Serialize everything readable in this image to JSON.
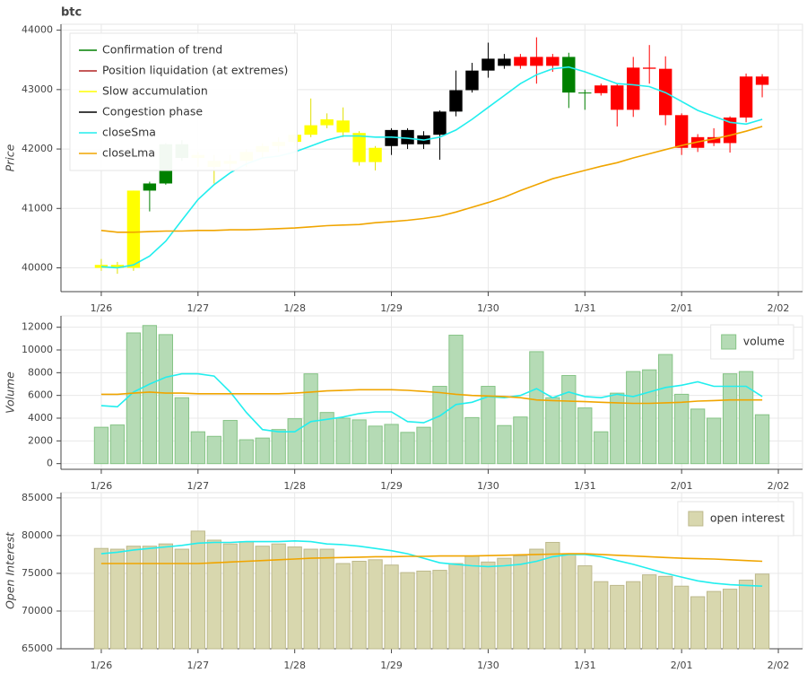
{
  "chart_data": [
    {
      "type": "candlestick",
      "title": "btc",
      "ylabel": "Price",
      "xlim": [
        -10,
        174
      ],
      "xticks": [
        {
          "value": 0,
          "label": "1/26"
        },
        {
          "value": 24,
          "label": "1/27"
        },
        {
          "value": 48,
          "label": "1/28"
        },
        {
          "value": 72,
          "label": "1/29"
        },
        {
          "value": 96,
          "label": "1/30"
        },
        {
          "value": 120,
          "label": "1/31"
        },
        {
          "value": 144,
          "label": "2/01"
        },
        {
          "value": 168,
          "label": "2/02"
        }
      ],
      "ylim": [
        39600,
        44100
      ],
      "yticks": [
        40000,
        41000,
        42000,
        43000,
        44000
      ],
      "grid": true,
      "legend": "top_left",
      "x": [
        0,
        4,
        8,
        12,
        16,
        20,
        24,
        28,
        32,
        36,
        40,
        44,
        48,
        52,
        56,
        60,
        64,
        68,
        72,
        76,
        80,
        84,
        88,
        92,
        96,
        100,
        104,
        108,
        112,
        116,
        120,
        124,
        128,
        132,
        136,
        140,
        144,
        148,
        152,
        156,
        160,
        164
      ],
      "candles": [
        {
          "name": "Confirmation of trend",
          "color": "#008000",
          "legend_color": "#008000",
          "x": [
            12,
            16,
            20,
            116,
            120
          ],
          "open": [
            41300,
            41420,
            42080,
            43550,
            42950
          ],
          "high": [
            41450,
            42100,
            42150,
            43620,
            43000
          ],
          "low": [
            40950,
            41400,
            41800,
            42690,
            42660
          ],
          "close": [
            41420,
            42080,
            41850,
            42950,
            42940
          ]
        },
        {
          "name": "Position liquidation (at extremes)",
          "color": "#ff0000",
          "legend_color": "#b22222",
          "x": [
            104,
            108,
            112,
            124,
            128,
            132,
            136,
            140,
            144,
            148,
            152,
            156,
            160,
            164
          ],
          "open": [
            43400,
            43550,
            43400,
            42940,
            43070,
            42660,
            43370,
            43350,
            42570,
            42020,
            42200,
            42100,
            42530,
            43220
          ],
          "high": [
            43600,
            43880,
            43600,
            43100,
            43100,
            43550,
            43750,
            43560,
            42600,
            42250,
            42350,
            42550,
            43270,
            43260
          ],
          "low": [
            43350,
            43100,
            43300,
            42900,
            42380,
            42540,
            43100,
            42400,
            41900,
            41950,
            42050,
            41940,
            42450,
            42870
          ],
          "close": [
            43550,
            43400,
            43550,
            43070,
            42660,
            43370,
            43350,
            42570,
            42020,
            42200,
            42100,
            42530,
            43220,
            43080
          ]
        },
        {
          "name": "Slow accumulation",
          "color": "#ffff00",
          "legend_color": "#ffff00",
          "x": [
            0,
            4,
            8,
            24,
            28,
            32,
            36,
            40,
            44,
            48,
            52,
            56,
            60,
            64,
            68
          ],
          "open": [
            40050,
            40000,
            40000,
            41850,
            41800,
            41750,
            41800,
            41950,
            42050,
            42120,
            42240,
            42400,
            42480,
            42270,
            41780
          ],
          "high": [
            40150,
            40100,
            41300,
            41950,
            41900,
            41900,
            42000,
            42100,
            42200,
            42250,
            42850,
            42600,
            42700,
            42300,
            42050
          ],
          "low": [
            39950,
            39900,
            39950,
            41700,
            41420,
            41650,
            41700,
            41850,
            41950,
            42050,
            42200,
            42350,
            42200,
            41720,
            41640
          ],
          "close": [
            40000,
            40050,
            41300,
            41900,
            41700,
            41800,
            41950,
            42050,
            42120,
            42240,
            42400,
            42500,
            42280,
            41780,
            42020
          ]
        },
        {
          "name": "Congestion phase",
          "color": "#000000",
          "legend_color": "#000000",
          "x": [
            72,
            76,
            80,
            84,
            88,
            92,
            96,
            100
          ],
          "open": [
            42050,
            42320,
            42080,
            42240,
            42630,
            42990,
            43320,
            43520
          ],
          "high": [
            42350,
            42350,
            42300,
            42650,
            43320,
            43450,
            43790,
            43600
          ],
          "low": [
            41900,
            42000,
            42000,
            41820,
            42550,
            42950,
            43200,
            43350
          ],
          "close": [
            42320,
            42080,
            42230,
            42630,
            42990,
            43320,
            43520,
            43400
          ]
        }
      ],
      "lines": [
        {
          "name": "closeSma",
          "color": "#22eeee",
          "values": [
            40020,
            40000,
            40050,
            40200,
            40450,
            40800,
            41150,
            41400,
            41600,
            41750,
            41850,
            41880,
            41950,
            42050,
            42150,
            42220,
            42220,
            42200,
            42200,
            42180,
            42150,
            42200,
            42320,
            42500,
            42700,
            42900,
            43100,
            43250,
            43350,
            43380,
            43300,
            43200,
            43100,
            43080,
            43050,
            42950,
            42800,
            42650,
            42550,
            42450,
            42420,
            42500
          ]
        },
        {
          "name": "closeLma",
          "color": "#f0a500",
          "values": [
            40630,
            40600,
            40600,
            40610,
            40620,
            40620,
            40630,
            40630,
            40640,
            40640,
            40650,
            40660,
            40670,
            40690,
            40710,
            40720,
            40730,
            40760,
            40780,
            40800,
            40830,
            40870,
            40940,
            41020,
            41100,
            41190,
            41300,
            41400,
            41500,
            41570,
            41640,
            41710,
            41770,
            41850,
            41920,
            41990,
            42060,
            42120,
            42170,
            42230,
            42300,
            42380
          ]
        }
      ]
    },
    {
      "type": "bar",
      "ylabel": "Volume",
      "xlim": [
        -10,
        174
      ],
      "xticks": [
        {
          "value": 0,
          "label": "1/26"
        },
        {
          "value": 24,
          "label": "1/27"
        },
        {
          "value": 48,
          "label": "1/28"
        },
        {
          "value": 72,
          "label": "1/29"
        },
        {
          "value": 96,
          "label": "1/30"
        },
        {
          "value": 120,
          "label": "1/31"
        },
        {
          "value": 144,
          "label": "2/01"
        },
        {
          "value": 168,
          "label": "2/02"
        }
      ],
      "ylim": [
        -500,
        13000
      ],
      "yticks": [
        0,
        2000,
        4000,
        6000,
        8000,
        10000,
        12000
      ],
      "grid": true,
      "legend": "top_right",
      "x": [
        0,
        4,
        8,
        12,
        16,
        20,
        24,
        28,
        32,
        36,
        40,
        44,
        48,
        52,
        56,
        60,
        64,
        68,
        72,
        76,
        80,
        84,
        88,
        92,
        96,
        100,
        104,
        108,
        112,
        116,
        120,
        124,
        128,
        132,
        136,
        140,
        144,
        148,
        152,
        156,
        160,
        164
      ],
      "series": [
        {
          "name": "volume",
          "color": "#b5dbb5",
          "edge": "#86c486",
          "values": [
            3200,
            3400,
            11500,
            12150,
            11350,
            5800,
            2800,
            2400,
            3800,
            2100,
            2250,
            3000,
            3950,
            7900,
            4500,
            4000,
            3850,
            3300,
            3450,
            2750,
            3200,
            6800,
            11300,
            4050,
            6800,
            3350,
            4100,
            9850,
            5800,
            7750,
            4900,
            2800,
            6200,
            8100,
            8250,
            9600,
            6100,
            4800,
            4000,
            7900,
            8100,
            4300
          ]
        }
      ],
      "lines": [
        {
          "color": "#22eeee",
          "values": [
            5100,
            5000,
            6300,
            7000,
            7600,
            7900,
            7900,
            7700,
            6300,
            4500,
            3000,
            2800,
            2800,
            3700,
            3900,
            4100,
            4400,
            4550,
            4550,
            3700,
            3600,
            4200,
            5200,
            5400,
            5900,
            5800,
            6000,
            6600,
            5800,
            6300,
            5900,
            5800,
            6100,
            5900,
            6300,
            6700,
            6900,
            7200,
            6800,
            6800,
            6800,
            5900
          ]
        },
        {
          "color": "#f0a500",
          "values": [
            6100,
            6100,
            6200,
            6300,
            6200,
            6200,
            6150,
            6150,
            6150,
            6150,
            6150,
            6150,
            6200,
            6300,
            6400,
            6450,
            6500,
            6500,
            6500,
            6450,
            6350,
            6250,
            6100,
            6000,
            5950,
            5900,
            5800,
            5600,
            5550,
            5500,
            5450,
            5400,
            5350,
            5300,
            5300,
            5350,
            5400,
            5500,
            5550,
            5600,
            5600,
            5600
          ]
        }
      ]
    },
    {
      "type": "bar",
      "ylabel": "Open Interest",
      "xlim": [
        -10,
        174
      ],
      "xticks": [
        {
          "value": 0,
          "label": "1/26"
        },
        {
          "value": 24,
          "label": "1/27"
        },
        {
          "value": 48,
          "label": "1/28"
        },
        {
          "value": 72,
          "label": "1/29"
        },
        {
          "value": 96,
          "label": "1/30"
        },
        {
          "value": 120,
          "label": "1/31"
        },
        {
          "value": 144,
          "label": "2/01"
        },
        {
          "value": 168,
          "label": "2/02"
        }
      ],
      "ylim": [
        65000,
        85700
      ],
      "yticks": [
        65000,
        70000,
        75000,
        80000,
        85000
      ],
      "grid": true,
      "legend": "top_right",
      "x": [
        0,
        4,
        8,
        12,
        16,
        20,
        24,
        28,
        32,
        36,
        40,
        44,
        48,
        52,
        56,
        60,
        64,
        68,
        72,
        76,
        80,
        84,
        88,
        92,
        96,
        100,
        104,
        108,
        112,
        116,
        120,
        124,
        128,
        132,
        136,
        140,
        144,
        148,
        152,
        156,
        160,
        164
      ],
      "series": [
        {
          "name": "open interest",
          "color": "#d8d7ae",
          "edge": "#bdb98c",
          "values": [
            78300,
            78200,
            78600,
            78600,
            78900,
            78200,
            80600,
            79400,
            78900,
            79200,
            78600,
            78900,
            78500,
            78200,
            78200,
            76300,
            76600,
            76800,
            76100,
            75100,
            75300,
            75400,
            76300,
            77300,
            76500,
            77000,
            77300,
            78200,
            79100,
            77500,
            76000,
            73900,
            73400,
            73900,
            74800,
            74600,
            73300,
            71900,
            72600,
            72900,
            74100,
            74900
          ]
        }
      ],
      "lines": [
        {
          "color": "#22eeee",
          "values": [
            77600,
            77800,
            78100,
            78300,
            78500,
            78700,
            79000,
            79100,
            79100,
            79200,
            79200,
            79200,
            79300,
            79200,
            78900,
            78800,
            78600,
            78300,
            78000,
            77600,
            77000,
            76400,
            76200,
            76000,
            75900,
            76000,
            76200,
            76600,
            77200,
            77500,
            77500,
            77200,
            76700,
            76200,
            75600,
            75000,
            74500,
            74000,
            73700,
            73500,
            73400,
            73300
          ]
        },
        {
          "color": "#f0a500",
          "values": [
            76300,
            76300,
            76300,
            76300,
            76300,
            76300,
            76300,
            76400,
            76500,
            76600,
            76700,
            76800,
            76900,
            77000,
            77050,
            77100,
            77150,
            77200,
            77200,
            77250,
            77250,
            77300,
            77300,
            77300,
            77350,
            77400,
            77450,
            77500,
            77550,
            77600,
            77600,
            77500,
            77400,
            77300,
            77200,
            77100,
            77000,
            76950,
            76900,
            76800,
            76700,
            76600
          ]
        }
      ]
    }
  ]
}
